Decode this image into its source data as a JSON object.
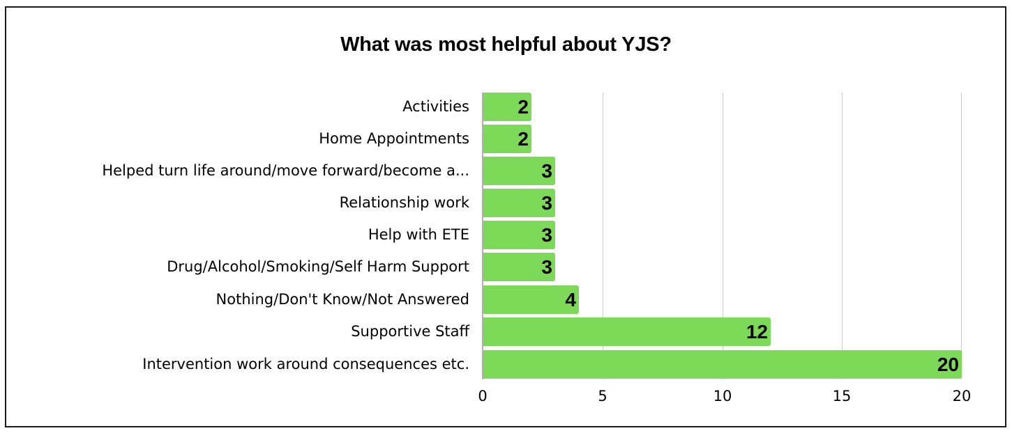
{
  "chart_data": {
    "type": "bar",
    "orientation": "horizontal",
    "title": "What was most helpful about YJS?",
    "xlabel": "",
    "ylabel": "",
    "categories": [
      "Activities",
      "Home Appointments",
      "Helped turn life around/move forward/become a...",
      "Relationship work",
      "Help with ETE",
      "Drug/Alcohol/Smoking/Self Harm Support",
      "Nothing/Don't Know/Not Answered",
      "Supportive Staff",
      "Intervention work around consequences etc."
    ],
    "values": [
      2,
      2,
      3,
      3,
      3,
      3,
      4,
      12,
      20
    ],
    "value_labels": [
      "2",
      "2",
      "3",
      "3",
      "3",
      "3",
      "4",
      "12",
      "20"
    ],
    "xlim": [
      0,
      20
    ],
    "x_ticks": [
      "0",
      "5",
      "10",
      "15",
      "20"
    ],
    "grid": "vertical",
    "legend": "none",
    "bar_color": "#7dda58",
    "data_labels": "inside-end"
  }
}
